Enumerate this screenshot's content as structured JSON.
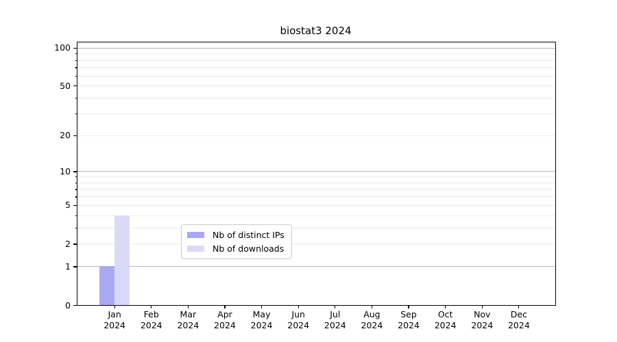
{
  "title": "biostat3 2024",
  "colors": {
    "ips_bar": "#a9a9f2",
    "downloads_bar": "#dadaf8",
    "major_grid": "#b4b4b4",
    "minor_grid": "#ebebeb",
    "spine": "#000000"
  },
  "legend": {
    "items": [
      {
        "label": "Nb of distinct IPs",
        "color_key": "ips_bar"
      },
      {
        "label": "Nb of downloads",
        "color_key": "downloads_bar"
      }
    ]
  },
  "chart_data": {
    "type": "bar",
    "title": "biostat3 2024",
    "categories": [
      {
        "label": "Jan",
        "sub": "2024"
      },
      {
        "label": "Feb",
        "sub": "2024"
      },
      {
        "label": "Mar",
        "sub": "2024"
      },
      {
        "label": "Apr",
        "sub": "2024"
      },
      {
        "label": "May",
        "sub": "2024"
      },
      {
        "label": "Jun",
        "sub": "2024"
      },
      {
        "label": "Jul",
        "sub": "2024"
      },
      {
        "label": "Aug",
        "sub": "2024"
      },
      {
        "label": "Sep",
        "sub": "2024"
      },
      {
        "label": "Oct",
        "sub": "2024"
      },
      {
        "label": "Nov",
        "sub": "2024"
      },
      {
        "label": "Dec",
        "sub": "2024"
      }
    ],
    "series": [
      {
        "name": "Nb of distinct IPs",
        "color_key": "ips_bar",
        "values": [
          1,
          0,
          0,
          0,
          0,
          0,
          0,
          0,
          0,
          0,
          0,
          0
        ]
      },
      {
        "name": "Nb of downloads",
        "color_key": "downloads_bar",
        "values": [
          4,
          0,
          0,
          0,
          0,
          0,
          0,
          0,
          0,
          0,
          0,
          0
        ]
      }
    ],
    "yscale": "log1p",
    "ylim": [
      0,
      110
    ],
    "yticks": [
      0,
      1,
      2,
      5,
      10,
      20,
      50,
      100
    ],
    "major_gridlines": [
      1,
      10,
      100
    ],
    "minor_gridlines": [
      2,
      3,
      4,
      5,
      6,
      7,
      8,
      9,
      20,
      30,
      40,
      50,
      60,
      70,
      80,
      90
    ],
    "grid": true,
    "xlabel": "",
    "ylabel": "",
    "legend_position": "lower center"
  }
}
